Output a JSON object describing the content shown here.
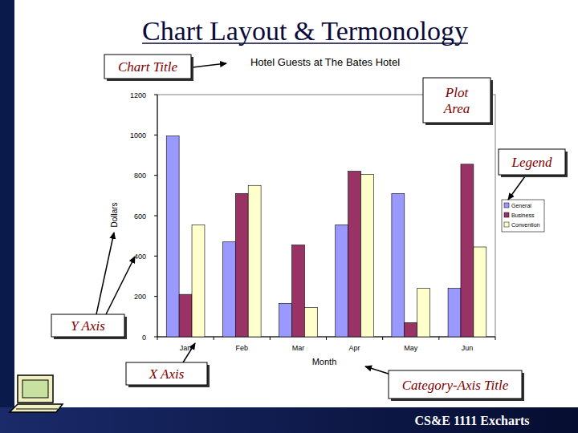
{
  "header": {
    "title": "Chart Layout & Termonology"
  },
  "chart_data": {
    "type": "bar",
    "title": "Hotel Guests at The Bates Hotel",
    "x_label": "Month",
    "y_label": "Dollars",
    "categories": [
      "Jan",
      "Feb",
      "Mar",
      "Apr",
      "May",
      "Jun"
    ],
    "series": [
      {
        "name": "General",
        "color": "#9999ff",
        "values": [
          995,
          470,
          165,
          555,
          710,
          240
        ]
      },
      {
        "name": "Business",
        "color": "#993366",
        "values": [
          210,
          710,
          455,
          820,
          70,
          855
        ]
      },
      {
        "name": "Convention",
        "color": "#ffffcc",
        "values": [
          555,
          750,
          145,
          805,
          240,
          445
        ]
      }
    ],
    "ylim": [
      0,
      1200
    ],
    "yticks": [
      0,
      200,
      400,
      600,
      800,
      1000,
      1200
    ],
    "grid": false,
    "legend": "right",
    "annotations": [
      "Chart Title",
      "Plot Area",
      "Legend",
      "Y Axis",
      "X Axis",
      "Category-Axis Title"
    ]
  },
  "footer": {
    "text": "CS&E 1111 Excharts"
  }
}
